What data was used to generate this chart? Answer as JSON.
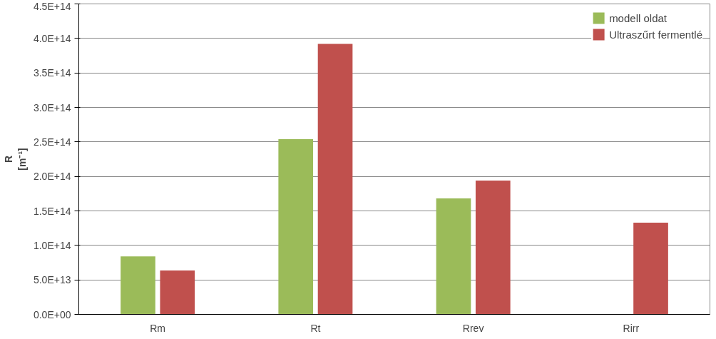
{
  "chart_data": {
    "type": "bar",
    "ylabel": "R\n[m⁻¹]",
    "categories": [
      "Rm",
      "Rt",
      "Rrev",
      "Rirr"
    ],
    "series": [
      {
        "name": "modell oldat",
        "color": "#9bbb59",
        "values": [
          84000000000000.0,
          254000000000000.0,
          168000000000000.0,
          null
        ]
      },
      {
        "name": "Ultraszűrt fermentlé",
        "color": "#c0504d",
        "values": [
          63500000000000.0,
          392000000000000.0,
          194000000000000.0,
          133000000000000.0
        ]
      }
    ],
    "ylim": [
      0,
      450000000000000.0
    ],
    "yticks": [
      {
        "value": 0,
        "label": "0.0E+00"
      },
      {
        "value": 50000000000000.0,
        "label": "5.0E+13"
      },
      {
        "value": 100000000000000.0,
        "label": "1.0E+14"
      },
      {
        "value": 150000000000000.0,
        "label": "1.5E+14"
      },
      {
        "value": 200000000000000.0,
        "label": "2.0E+14"
      },
      {
        "value": 250000000000000.0,
        "label": "2.5E+14"
      },
      {
        "value": 300000000000000.0,
        "label": "3.0E+14"
      },
      {
        "value": 350000000000000.0,
        "label": "3.5E+14"
      },
      {
        "value": 400000000000000.0,
        "label": "4.0E+14"
      },
      {
        "value": 450000000000000.0,
        "label": "4.5E+14"
      }
    ],
    "grid": "y",
    "legend": "top right"
  }
}
